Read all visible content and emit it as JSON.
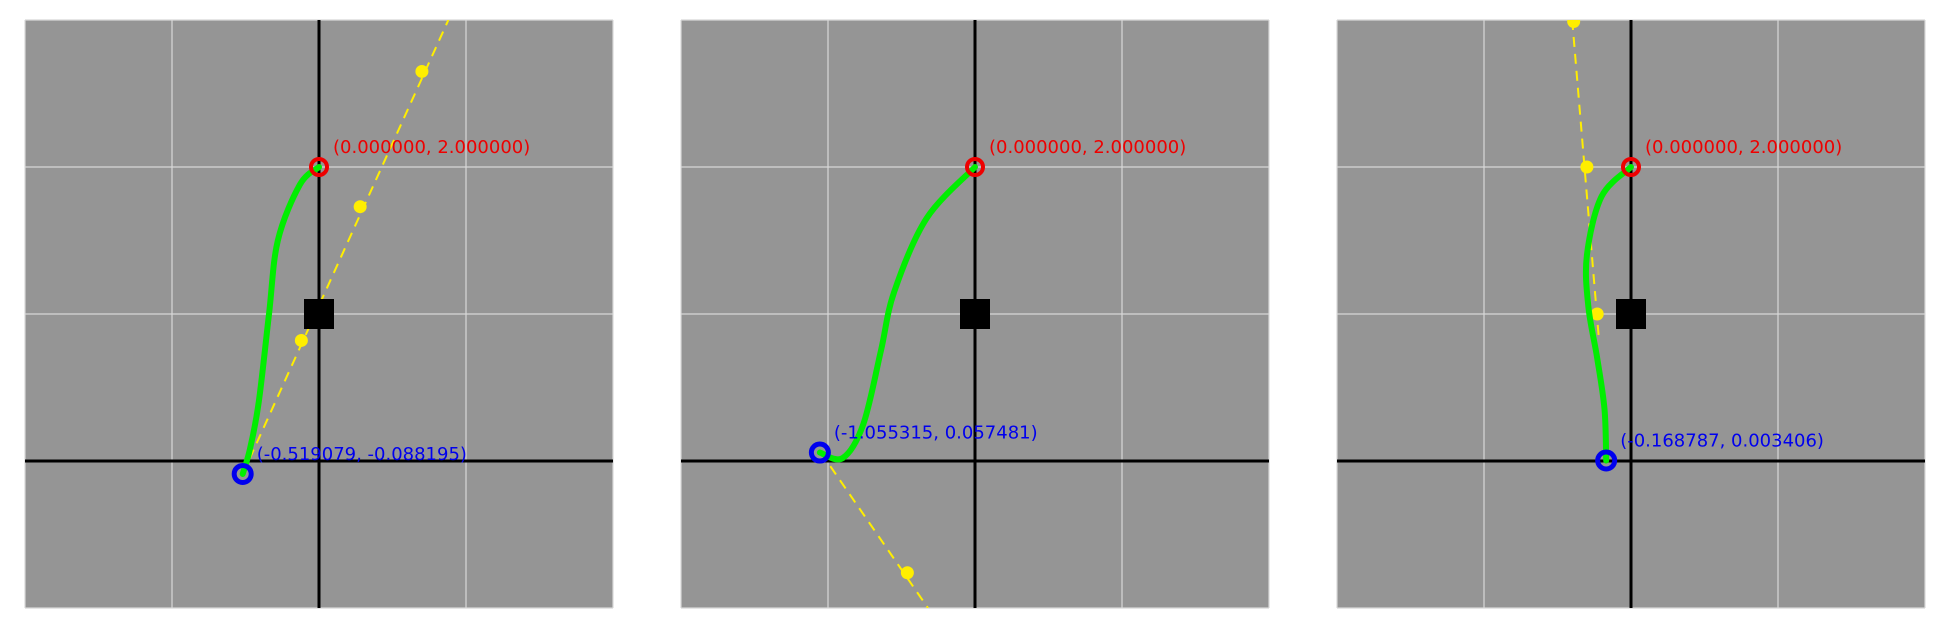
{
  "colors": {
    "background": "#959595",
    "grid": "#d8d8d8",
    "axis": "#000000",
    "curve": "#00ee00",
    "control": "#ffee00",
    "start_point": "#ee0000",
    "end_point": "#0000ee",
    "center_marker": "#000000"
  },
  "view": {
    "x_range": [
      -2,
      2
    ],
    "y_range": [
      -1,
      3
    ],
    "grid_step": 1
  },
  "panels": [
    {
      "start": {
        "x": 0.0,
        "y": 2.0,
        "label": "(0.000000, 2.000000)"
      },
      "end": {
        "x": -0.519079,
        "y": -0.088195,
        "label": "(-0.519079, -0.088195)"
      },
      "center": {
        "x": 0.0,
        "y": 1.0
      },
      "control_points": [
        {
          "x": 0.28,
          "y": 1.73
        },
        {
          "x": -0.12,
          "y": 0.82
        },
        {
          "x": 0.7,
          "y": 2.65
        }
      ],
      "control_line": [
        {
          "x": -0.52,
          "y": -0.09
        },
        {
          "x": 0.88,
          "y": 3.0
        }
      ],
      "curve": [
        {
          "x": 0.0,
          "y": 2.0
        },
        {
          "x": -0.13,
          "y": 1.88
        },
        {
          "x": -0.28,
          "y": 1.5
        },
        {
          "x": -0.34,
          "y": 1.0
        },
        {
          "x": -0.41,
          "y": 0.4
        },
        {
          "x": -0.47,
          "y": 0.08
        },
        {
          "x": -0.519079,
          "y": -0.088195
        }
      ]
    },
    {
      "start": {
        "x": 0.0,
        "y": 2.0,
        "label": "(0.000000, 2.000000)"
      },
      "end": {
        "x": -1.055315,
        "y": 0.057481,
        "label": "(-1.055315, 0.057481)"
      },
      "center": {
        "x": 0.0,
        "y": 1.0
      },
      "control_points": [
        {
          "x": -0.46,
          "y": -0.76
        }
      ],
      "control_line": [
        {
          "x": -1.05,
          "y": 0.06
        },
        {
          "x": -0.32,
          "y": -1.0
        }
      ],
      "curve": [
        {
          "x": 0.0,
          "y": 2.0
        },
        {
          "x": -0.33,
          "y": 1.65
        },
        {
          "x": -0.55,
          "y": 1.15
        },
        {
          "x": -0.64,
          "y": 0.75
        },
        {
          "x": -0.76,
          "y": 0.25
        },
        {
          "x": -0.9,
          "y": 0.02
        },
        {
          "x": -1.055315,
          "y": 0.057481
        }
      ]
    },
    {
      "start": {
        "x": 0.0,
        "y": 2.0,
        "label": "(0.000000, 2.000000)"
      },
      "end": {
        "x": -0.168787,
        "y": 0.003406,
        "label": "(-0.168787, 0.003406)"
      },
      "center": {
        "x": 0.0,
        "y": 1.0
      },
      "control_points": [
        {
          "x": -0.39,
          "y": 2.99
        },
        {
          "x": -0.3,
          "y": 2.0
        },
        {
          "x": -0.23,
          "y": 1.0
        }
      ],
      "control_line": [
        {
          "x": -0.4,
          "y": 3.0
        },
        {
          "x": -0.22,
          "y": 0.85
        }
      ],
      "curve": [
        {
          "x": 0.0,
          "y": 2.0
        },
        {
          "x": -0.2,
          "y": 1.8
        },
        {
          "x": -0.3,
          "y": 1.4
        },
        {
          "x": -0.29,
          "y": 1.05
        },
        {
          "x": -0.23,
          "y": 0.7
        },
        {
          "x": -0.18,
          "y": 0.35
        },
        {
          "x": -0.168787,
          "y": 0.003406
        }
      ]
    }
  ]
}
